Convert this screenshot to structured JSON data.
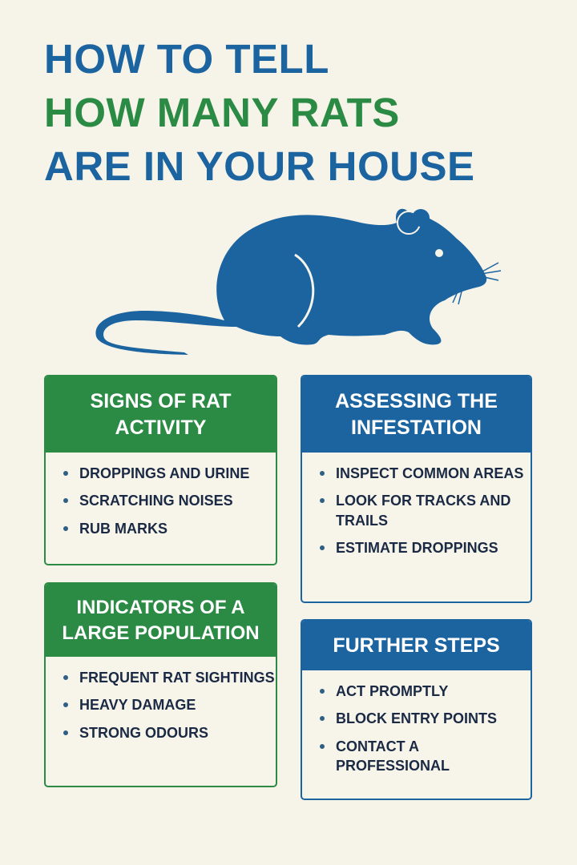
{
  "title": {
    "line1": "HOW TO TELL",
    "line2": "HOW MANY RATS",
    "line3": "ARE IN YOUR HOUSE"
  },
  "colors": {
    "blue": "#1c64a0",
    "green": "#2b8b45",
    "background": "#f6f3e9",
    "text": "#1b2a44"
  },
  "illustration": "rat-silhouette",
  "cards": [
    {
      "heading": "SIGNS OF RAT ACTIVITY",
      "items": [
        "DROPPINGS AND URINE",
        "SCRATCHING NOISES",
        "RUB MARKS"
      ]
    },
    {
      "heading": "INDICATORS OF A LARGE POPULATION",
      "items": [
        "FREQUENT RAT SIGHTINGS",
        "HEAVY DAMAGE",
        "STRONG ODOURS"
      ]
    },
    {
      "heading": "ASSESSING THE INFESTATION",
      "items": [
        "INSPECT COMMON AREAS",
        "LOOK FOR TRACKS AND TRAILS",
        "ESTIMATE DROPPINGS"
      ]
    },
    {
      "heading": "FURTHER STEPS",
      "items": [
        "ACT PROMPTLY",
        "BLOCK ENTRY POINTS",
        "CONTACT A PROFESSIONAL"
      ]
    }
  ]
}
